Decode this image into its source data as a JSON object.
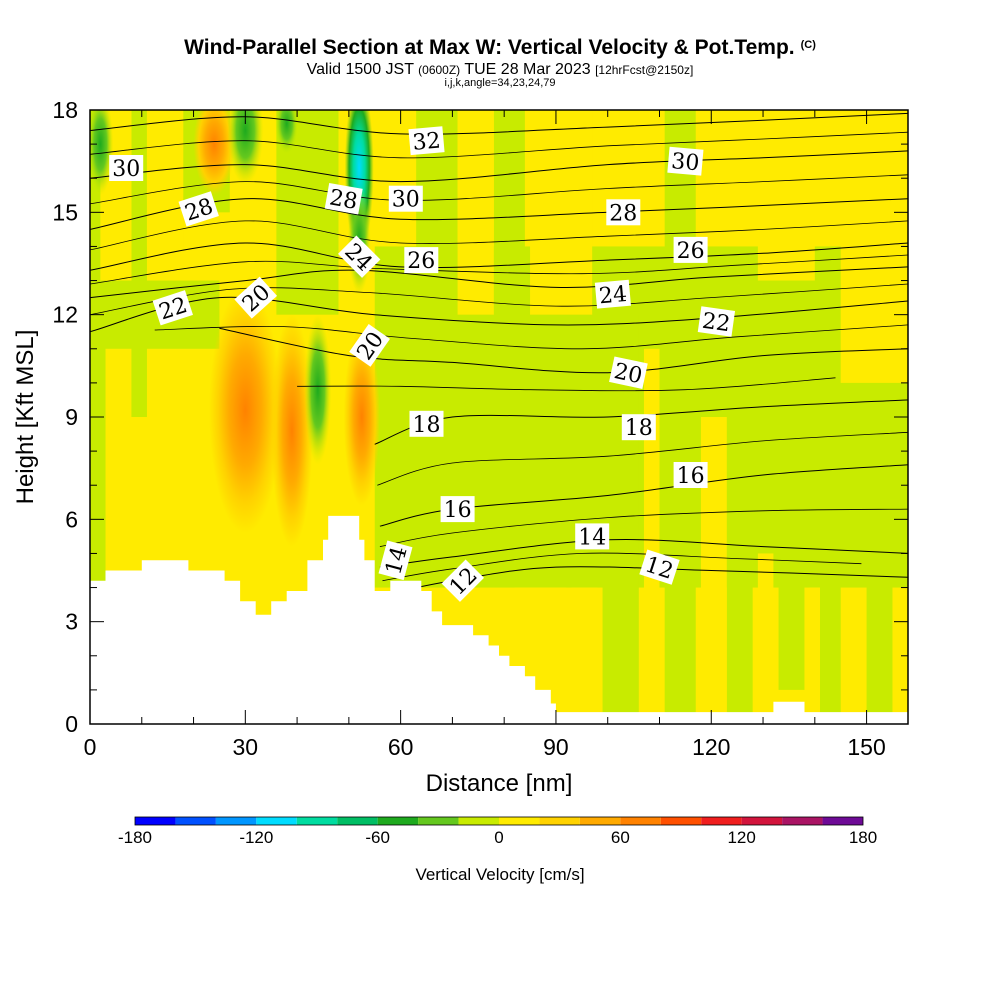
{
  "title": "Wind-Parallel Section at Max W: Vertical Velocity & Pot.Temp.",
  "title_tag": "(C)",
  "subtitle_main": "Valid 1500 JST",
  "subtitle_utc": "(0600Z)",
  "subtitle_date": "TUE 28 Mar 2023",
  "subtitle_fcst": "[12hrFcst@2150z]",
  "ijk_line": "i,j,k,angle=34,23,24,79",
  "chart_data": {
    "type": "heatmap",
    "title": "Wind-Parallel Section at Max W: Vertical Velocity & Pot.Temp.",
    "xlabel": "Distance [nm]",
    "ylabel": "Height [Kft MSL]",
    "xlim": [
      0,
      158
    ],
    "ylim": [
      0,
      18
    ],
    "x_ticks": [
      "0",
      "30",
      "60",
      "90",
      "120",
      "150"
    ],
    "y_ticks": [
      "0",
      "3",
      "6",
      "9",
      "12",
      "15",
      "18"
    ],
    "colorbar": {
      "label": "Vertical Velocity [cm/s]",
      "min": -180,
      "max": 180,
      "step": 20,
      "tick_labels": [
        "-180",
        "-120",
        "-60",
        "0",
        "60",
        "120",
        "180"
      ],
      "colors": [
        "#0000ff",
        "#0050ff",
        "#0096ff",
        "#00dcff",
        "#00dca0",
        "#00be64",
        "#1eaa1e",
        "#64c81e",
        "#c8eb00",
        "#ffeb00",
        "#ffd200",
        "#ffaa00",
        "#ff8200",
        "#ff5000",
        "#f01e1e",
        "#d2143c",
        "#aa1464",
        "#6e0a96"
      ]
    },
    "fill_colors": {
      "zero_to_20": "#ffeb00",
      "minus20_to_0": "#c8eb00",
      "minus40_to_minus20": "#64c81e",
      "minus60_to_minus40": "#1eaa1e",
      "minus100_to_minus80": "#00dca0",
      "minus120_to_minus100": "#00dcff",
      "20_to_40": "#ffd200",
      "40_to_60": "#ffaa00",
      "60_to_80": "#ff8200"
    },
    "terrain_kft": [
      [
        0,
        4.2
      ],
      [
        3,
        4.2
      ],
      [
        3,
        4.5
      ],
      [
        10,
        4.5
      ],
      [
        10,
        4.8
      ],
      [
        19,
        4.8
      ],
      [
        19,
        4.5
      ],
      [
        26,
        4.5
      ],
      [
        26,
        4.2
      ],
      [
        29,
        4.2
      ],
      [
        29,
        3.6
      ],
      [
        32,
        3.6
      ],
      [
        32,
        3.2
      ],
      [
        35,
        3.2
      ],
      [
        35,
        3.6
      ],
      [
        38,
        3.6
      ],
      [
        38,
        3.9
      ],
      [
        42,
        3.9
      ],
      [
        42,
        4.8
      ],
      [
        45,
        4.8
      ],
      [
        45,
        5.4
      ],
      [
        46,
        5.4
      ],
      [
        46,
        6.1
      ],
      [
        52,
        6.1
      ],
      [
        52,
        5.4
      ],
      [
        53,
        5.4
      ],
      [
        53,
        4.8
      ],
      [
        55,
        4.8
      ],
      [
        55,
        3.9
      ],
      [
        58,
        3.9
      ],
      [
        58,
        4.2
      ],
      [
        64,
        4.2
      ],
      [
        64,
        3.9
      ],
      [
        66,
        3.9
      ],
      [
        66,
        3.3
      ],
      [
        68,
        3.3
      ],
      [
        68,
        2.9
      ],
      [
        74,
        2.9
      ],
      [
        74,
        2.6
      ],
      [
        77,
        2.6
      ],
      [
        77,
        2.3
      ],
      [
        79,
        2.3
      ],
      [
        79,
        2.0
      ],
      [
        81,
        2.0
      ],
      [
        81,
        1.7
      ],
      [
        84,
        1.7
      ],
      [
        84,
        1.4
      ],
      [
        86,
        1.4
      ],
      [
        86,
        1.0
      ],
      [
        89,
        1.0
      ],
      [
        89,
        0.6
      ],
      [
        90,
        0.6
      ],
      [
        90,
        0.35
      ],
      [
        132,
        0.35
      ],
      [
        132,
        0.65
      ],
      [
        138,
        0.65
      ],
      [
        138,
        0.35
      ],
      [
        158,
        0.35
      ]
    ],
    "theta_contours_C": [
      {
        "value": 12,
        "points": [
          [
            57,
            3.8
          ],
          [
            70,
            4.2
          ],
          [
            90,
            4.6
          ],
          [
            120,
            4.5
          ],
          [
            140,
            4.4
          ],
          [
            158,
            4.3
          ]
        ]
      },
      {
        "value": 14,
        "points": [
          [
            56,
            4.6
          ],
          [
            70,
            4.9
          ],
          [
            100,
            5.4
          ],
          [
            130,
            5.2
          ],
          [
            158,
            5.0
          ]
        ]
      },
      {
        "value": 16,
        "points": [
          [
            56,
            5.8
          ],
          [
            70,
            6.3
          ],
          [
            100,
            6.7
          ],
          [
            130,
            7.3
          ],
          [
            158,
            7.6
          ]
        ]
      },
      {
        "value": 18,
        "points": [
          [
            55,
            8.2
          ],
          [
            70,
            9.0
          ],
          [
            100,
            9.0
          ],
          [
            130,
            9.3
          ],
          [
            158,
            9.5
          ]
        ]
      },
      {
        "value": 20,
        "points": [
          [
            25,
            11.6
          ],
          [
            50,
            10.8
          ],
          [
            70,
            10.6
          ],
          [
            100,
            10.3
          ],
          [
            130,
            10.8
          ],
          [
            158,
            11.0
          ]
        ]
      },
      {
        "value": 22,
        "points": [
          [
            0,
            11.5
          ],
          [
            25,
            12.5
          ],
          [
            55,
            12.0
          ],
          [
            90,
            11.7
          ],
          [
            120,
            11.9
          ],
          [
            158,
            12.4
          ]
        ]
      },
      {
        "value": 24,
        "points": [
          [
            0,
            12.5
          ],
          [
            30,
            13.0
          ],
          [
            52,
            13.3
          ],
          [
            90,
            12.8
          ],
          [
            120,
            13.1
          ],
          [
            158,
            13.4
          ]
        ]
      },
      {
        "value": 26,
        "points": [
          [
            0,
            13.3
          ],
          [
            30,
            14.1
          ],
          [
            60,
            13.4
          ],
          [
            100,
            13.6
          ],
          [
            130,
            13.8
          ],
          [
            158,
            14.1
          ]
        ]
      },
      {
        "value": 28,
        "points": [
          [
            0,
            14.5
          ],
          [
            30,
            15.4
          ],
          [
            60,
            14.8
          ],
          [
            100,
            15.0
          ],
          [
            130,
            15.2
          ],
          [
            158,
            15.4
          ]
        ]
      },
      {
        "value": 30,
        "points": [
          [
            0,
            16.0
          ],
          [
            30,
            16.4
          ],
          [
            60,
            15.9
          ],
          [
            100,
            16.4
          ],
          [
            130,
            16.6
          ],
          [
            158,
            16.8
          ]
        ]
      },
      {
        "value": 32,
        "points": [
          [
            0,
            17.4
          ],
          [
            30,
            17.8
          ],
          [
            60,
            17.3
          ],
          [
            100,
            17.5
          ],
          [
            130,
            17.7
          ],
          [
            158,
            17.9
          ]
        ]
      }
    ],
    "contour_labels": [
      {
        "text": "30",
        "x": 7,
        "y": 16.3,
        "angle": 0
      },
      {
        "text": "28",
        "x": 21,
        "y": 15.1,
        "angle": -18
      },
      {
        "text": "22",
        "x": 16,
        "y": 12.2,
        "angle": -18
      },
      {
        "text": "20",
        "x": 32,
        "y": 12.5,
        "angle": -42
      },
      {
        "text": "28",
        "x": 49,
        "y": 15.4,
        "angle": 10
      },
      {
        "text": "30",
        "x": 61,
        "y": 15.4,
        "angle": 0
      },
      {
        "text": "32",
        "x": 65,
        "y": 17.1,
        "angle": -5
      },
      {
        "text": "24",
        "x": 52,
        "y": 13.7,
        "angle": 45
      },
      {
        "text": "26",
        "x": 64,
        "y": 13.6,
        "angle": 0
      },
      {
        "text": "20",
        "x": 54,
        "y": 11.1,
        "angle": -55
      },
      {
        "text": "18",
        "x": 65,
        "y": 8.8,
        "angle": 0
      },
      {
        "text": "16",
        "x": 71,
        "y": 6.3,
        "angle": 0
      },
      {
        "text": "14",
        "x": 59,
        "y": 4.8,
        "angle": -75
      },
      {
        "text": "12",
        "x": 72,
        "y": 4.2,
        "angle": -45
      },
      {
        "text": "30",
        "x": 115,
        "y": 16.5,
        "angle": 5
      },
      {
        "text": "28",
        "x": 103,
        "y": 15.0,
        "angle": 0
      },
      {
        "text": "26",
        "x": 116,
        "y": 13.9,
        "angle": 0
      },
      {
        "text": "24",
        "x": 101,
        "y": 12.6,
        "angle": -5
      },
      {
        "text": "22",
        "x": 121,
        "y": 11.8,
        "angle": 8
      },
      {
        "text": "20",
        "x": 104,
        "y": 10.3,
        "angle": 12
      },
      {
        "text": "18",
        "x": 106,
        "y": 8.7,
        "angle": 0
      },
      {
        "text": "16",
        "x": 116,
        "y": 7.3,
        "angle": 0
      },
      {
        "text": "14",
        "x": 97,
        "y": 5.5,
        "angle": 0
      },
      {
        "text": "12",
        "x": 110,
        "y": 4.6,
        "angle": 18
      }
    ],
    "velocity_features": [
      {
        "kind": "updraft_core",
        "x": [
          26,
          34
        ],
        "y": [
          6.5,
          12
        ],
        "w_class": "60_to_80"
      },
      {
        "kind": "updraft_core",
        "x": [
          37,
          41
        ],
        "y": [
          6.0,
          12
        ],
        "w_class": "60_to_80"
      },
      {
        "kind": "updraft_core",
        "x": [
          50,
          55
        ],
        "y": [
          7.5,
          11
        ],
        "w_class": "60_to_80"
      },
      {
        "kind": "downdraft_core",
        "x": [
          50,
          54
        ],
        "y": [
          13.5,
          18
        ],
        "w_class": "minus120_to_minus100"
      },
      {
        "kind": "downdraft_core",
        "x": [
          27,
          35
        ],
        "y": [
          16,
          18
        ],
        "w_class": "minus60_to_minus40"
      },
      {
        "kind": "downdraft_core",
        "x": [
          42,
          46
        ],
        "y": [
          8.0,
          11
        ],
        "w_class": "minus40_to_minus20"
      }
    ]
  }
}
